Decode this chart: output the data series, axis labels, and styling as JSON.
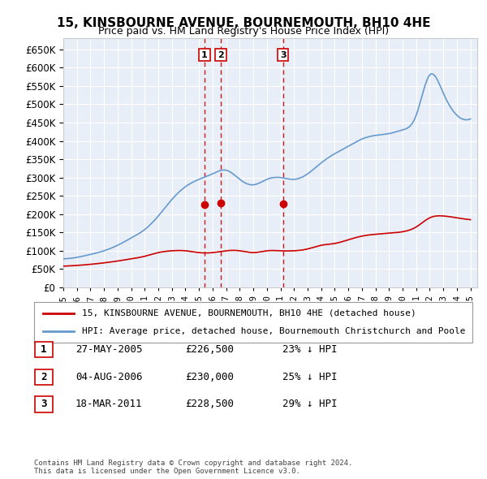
{
  "title": "15, KINSBOURNE AVENUE, BOURNEMOUTH, BH10 4HE",
  "subtitle": "Price paid vs. HM Land Registry's House Price Index (HPI)",
  "ylabel": "",
  "xlabel": "",
  "ylim": [
    0,
    680000
  ],
  "yticks": [
    0,
    50000,
    100000,
    150000,
    200000,
    250000,
    300000,
    350000,
    400000,
    450000,
    500000,
    550000,
    600000,
    650000
  ],
  "ytick_labels": [
    "£0",
    "£50K",
    "£100K",
    "£150K",
    "£200K",
    "£250K",
    "£300K",
    "£350K",
    "£400K",
    "£450K",
    "£500K",
    "£550K",
    "£600K",
    "£650K"
  ],
  "xlim_start": 1995.0,
  "xlim_end": 2025.5,
  "background_color": "#e8eef7",
  "plot_bg_color": "#e8eef7",
  "grid_color": "#ffffff",
  "hpi_color": "#6699cc",
  "price_color": "#cc0000",
  "transaction_color": "#cc0000",
  "transaction_line_color": "#cc0000",
  "transactions": [
    {
      "date": 2005.4,
      "price": 226500,
      "label": "1"
    },
    {
      "date": 2006.6,
      "price": 230000,
      "label": "2"
    },
    {
      "date": 2011.2,
      "price": 228500,
      "label": "3"
    }
  ],
  "legend_price_label": "15, KINSBOURNE AVENUE, BOURNEMOUTH, BH10 4HE (detached house)",
  "legend_hpi_label": "HPI: Average price, detached house, Bournemouth Christchurch and Poole",
  "table_rows": [
    {
      "label": "1",
      "date": "27-MAY-2005",
      "price": "£226,500",
      "note": "23% ↓ HPI"
    },
    {
      "label": "2",
      "date": "04-AUG-2006",
      "price": "£230,000",
      "note": "25% ↓ HPI"
    },
    {
      "label": "3",
      "date": "18-MAR-2011",
      "price": "£228,500",
      "note": "29% ↓ HPI"
    }
  ],
  "footer": "Contains HM Land Registry data © Crown copyright and database right 2024.\nThis data is licensed under the Open Government Licence v3.0."
}
